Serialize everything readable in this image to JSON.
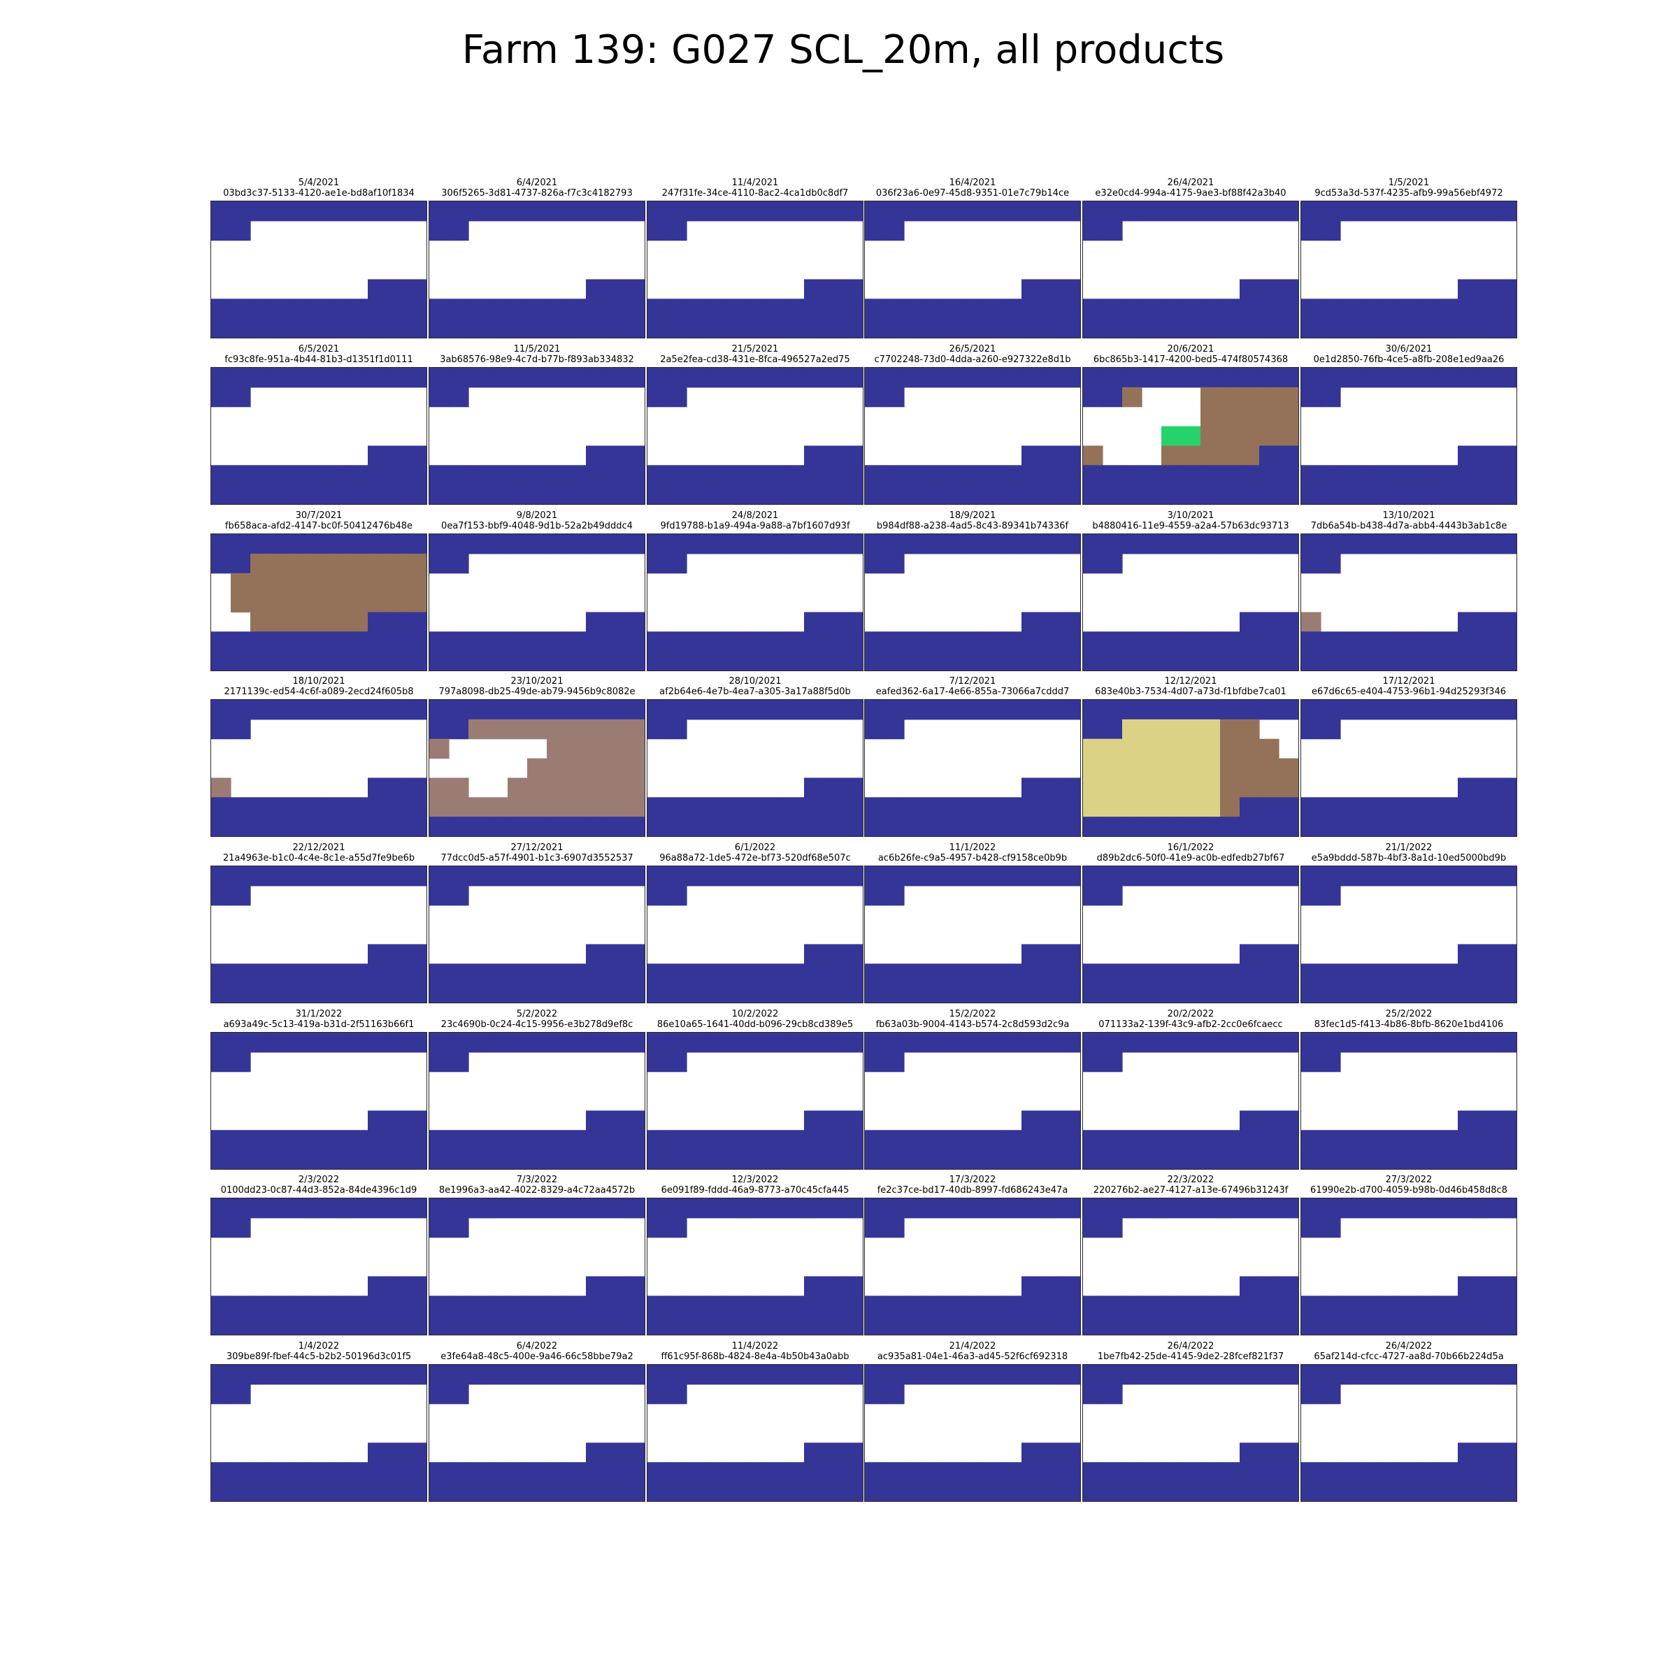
{
  "title": "Farm 139: G027 SCL_20m, all products",
  "colors": {
    "no-data": "#343597",
    "water": "#343597",
    "unclassified": "#ffffff",
    "bare-soil": "#937259",
    "vegetation": "#25d36a",
    "cloud-medium": "#9b7c74",
    "cloud-high": "#dcd285"
  },
  "panels": [
    {
      "date": "5/4/2021",
      "id": "03bd3c37-5133-4120-ae1e-bd8af10f1834",
      "scene": "default"
    },
    {
      "date": "6/4/2021",
      "id": "306f5265-3d81-4737-826a-f7c3c4182793",
      "scene": "default"
    },
    {
      "date": "11/4/2021",
      "id": "247f31fe-34ce-4110-8ac2-4ca1db0c8df7",
      "scene": "default"
    },
    {
      "date": "16/4/2021",
      "id": "036f23a6-0e97-45d8-9351-01e7c79b14ce",
      "scene": "default"
    },
    {
      "date": "26/4/2021",
      "id": "e32e0cd4-994a-4175-9ae3-bf88f42a3b40",
      "scene": "default"
    },
    {
      "date": "1/5/2021",
      "id": "9cd53a3d-537f-4235-afb9-99a56ebf4972",
      "scene": "default"
    },
    {
      "date": "6/5/2021",
      "id": "fc93c8fe-951a-4b44-81b3-d1351f1d0111",
      "scene": "default"
    },
    {
      "date": "11/5/2021",
      "id": "3ab68576-98e9-4c7d-b77b-f893ab334832",
      "scene": "default"
    },
    {
      "date": "21/5/2021",
      "id": "2a5e2fea-cd38-431e-8fca-496527a2ed75",
      "scene": "default"
    },
    {
      "date": "26/5/2021",
      "id": "c7702248-73d0-4dda-a260-e927322e8d1b",
      "scene": "default"
    },
    {
      "date": "20/6/2021",
      "id": "6bc865b3-1417-4200-bed5-474f80574368",
      "scene": "s_20_6_2021"
    },
    {
      "date": "30/6/2021",
      "id": "0e1d2850-76fb-4ce5-a8fb-208e1ed9aa26",
      "scene": "default"
    },
    {
      "date": "30/7/2021",
      "id": "fb658aca-afd2-4147-bc0f-50412476b48e",
      "scene": "s_30_7_2021"
    },
    {
      "date": "9/8/2021",
      "id": "0ea7f153-bbf9-4048-9d1b-52a2b49dddc4",
      "scene": "default"
    },
    {
      "date": "24/8/2021",
      "id": "9fd19788-b1a9-494a-9a88-a7bf1607d93f",
      "scene": "default"
    },
    {
      "date": "18/9/2021",
      "id": "b984df88-a238-4ad5-8c43-89341b74336f",
      "scene": "default"
    },
    {
      "date": "3/10/2021",
      "id": "b4880416-11e9-4559-a2a4-57b63dc93713",
      "scene": "default"
    },
    {
      "date": "13/10/2021",
      "id": "7db6a54b-b438-4d7a-abb4-4443b3ab1c8e",
      "scene": "s_13_10_2021"
    },
    {
      "date": "18/10/2021",
      "id": "2171139c-ed54-4c6f-a089-2ecd24f605b8",
      "scene": "s_18_10_2021"
    },
    {
      "date": "23/10/2021",
      "id": "797a8098-db25-49de-ab79-9456b9c8082e",
      "scene": "s_23_10_2021"
    },
    {
      "date": "28/10/2021",
      "id": "af2b64e6-4e7b-4ea7-a305-3a17a88f5d0b",
      "scene": "default"
    },
    {
      "date": "7/12/2021",
      "id": "eafed362-6a17-4e66-855a-73066a7cddd7",
      "scene": "default"
    },
    {
      "date": "12/12/2021",
      "id": "683e40b3-7534-4d07-a73d-f1bfdbe7ca01",
      "scene": "s_12_12_2021"
    },
    {
      "date": "17/12/2021",
      "id": "e67d6c65-e404-4753-96b1-94d25293f346",
      "scene": "default"
    },
    {
      "date": "22/12/2021",
      "id": "21a4963e-b1c0-4c4e-8c1e-a55d7fe9be6b",
      "scene": "default"
    },
    {
      "date": "27/12/2021",
      "id": "77dcc0d5-a57f-4901-b1c3-6907d3552537",
      "scene": "default"
    },
    {
      "date": "6/1/2022",
      "id": "96a88a72-1de5-472e-bf73-520df68e507c",
      "scene": "default"
    },
    {
      "date": "11/1/2022",
      "id": "ac6b26fe-c9a5-4957-b428-cf9158ce0b9b",
      "scene": "default"
    },
    {
      "date": "16/1/2022",
      "id": "d89b2dc6-50f0-41e9-ac0b-edfedb27bf67",
      "scene": "default"
    },
    {
      "date": "21/1/2022",
      "id": "e5a9bddd-587b-4bf3-8a1d-10ed5000bd9b",
      "scene": "default"
    },
    {
      "date": "31/1/2022",
      "id": "a693a49c-5c13-419a-b31d-2f51163b66f1",
      "scene": "default"
    },
    {
      "date": "5/2/2022",
      "id": "23c4690b-0c24-4c15-9956-e3b278d9ef8c",
      "scene": "default"
    },
    {
      "date": "10/2/2022",
      "id": "86e10a65-1641-40dd-b096-29cb8cd389e5",
      "scene": "default"
    },
    {
      "date": "15/2/2022",
      "id": "fb63a03b-9004-4143-b574-2c8d593d2c9a",
      "scene": "default"
    },
    {
      "date": "20/2/2022",
      "id": "071133a2-139f-43c9-afb2-2cc0e6fcaecc",
      "scene": "default"
    },
    {
      "date": "25/2/2022",
      "id": "83fec1d5-f413-4b86-8bfb-8620e1bd4106",
      "scene": "default"
    },
    {
      "date": "2/3/2022",
      "id": "0100dd23-0c87-44d3-852a-84de4396c1d9",
      "scene": "default"
    },
    {
      "date": "7/3/2022",
      "id": "8e1996a3-aa42-4022-8329-a4c72aa4572b",
      "scene": "default"
    },
    {
      "date": "12/3/2022",
      "id": "6e091f89-fddd-46a9-8773-a70c45cfa445",
      "scene": "default"
    },
    {
      "date": "17/3/2022",
      "id": "fe2c37ce-bd17-40db-8997-fd686243e47a",
      "scene": "default"
    },
    {
      "date": "22/3/2022",
      "id": "220276b2-ae27-4127-a13e-67496b31243f",
      "scene": "default"
    },
    {
      "date": "27/3/2022",
      "id": "61990e2b-d700-4059-b98b-0d46b458d8c8",
      "scene": "default"
    },
    {
      "date": "1/4/2022",
      "id": "309be89f-fbef-44c5-b2b2-50196d3c01f5",
      "scene": "default"
    },
    {
      "date": "6/4/2022",
      "id": "e3fe64a8-48c5-400e-9a46-66c58bbe79a2",
      "scene": "default"
    },
    {
      "date": "11/4/2022",
      "id": "ff61c95f-868b-4824-8e4a-4b50b43a0abb",
      "scene": "default"
    },
    {
      "date": "21/4/2022",
      "id": "ac935a81-04e1-46a3-ad45-52f6cf692318",
      "scene": "default"
    },
    {
      "date": "26/4/2022",
      "id": "1be7fb42-25de-4145-9de2-28fcef821f37",
      "scene": "default"
    },
    {
      "date": "26/4/2022",
      "id": "65af214d-cfcc-4727-aa8d-70b66b224d5a",
      "scene": "default"
    }
  ]
}
